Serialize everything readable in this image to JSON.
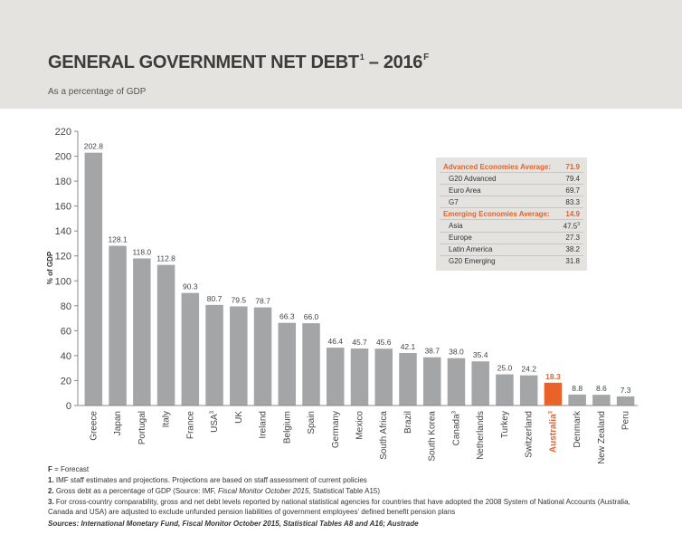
{
  "header": {
    "title": "GENERAL GOVERNMENT NET DEBT",
    "title_sup1": "1",
    "title_rest": " – 2016",
    "title_sup2": "F",
    "subtitle": "As a percentage of GDP"
  },
  "colors": {
    "bar": "#a4a5a7",
    "highlight": "#e8622a",
    "header_bg": "#e4e3e0"
  },
  "chart_data": {
    "type": "bar",
    "ylabel": "% of GDP",
    "ylim": [
      0,
      220
    ],
    "yticks": [
      0,
      20,
      40,
      60,
      80,
      100,
      120,
      140,
      160,
      180,
      200,
      220
    ],
    "categories": [
      "Greece",
      "Japan",
      "Portugal",
      "Italy",
      "France",
      "USA",
      "UK",
      "Ireland",
      "Belgium",
      "Spain",
      "Germany",
      "Mexico",
      "South Africa",
      "Brazil",
      "South Korea",
      "Canada",
      "Netherlands",
      "Turkey",
      "Switzerland",
      "Australia",
      "Denmark",
      "New Zealand",
      "Peru"
    ],
    "category_sups": [
      "",
      "",
      "",
      "",
      "",
      "3",
      "",
      "",
      "",
      "",
      "",
      "",
      "",
      "",
      "",
      "3",
      "",
      "",
      "",
      "3",
      "",
      "",
      ""
    ],
    "values": [
      202.8,
      128.1,
      118.0,
      112.8,
      90.3,
      80.7,
      79.5,
      78.7,
      66.3,
      66.0,
      46.4,
      45.7,
      45.6,
      42.1,
      38.7,
      38.0,
      35.4,
      25.0,
      24.2,
      18.3,
      8.8,
      8.6,
      7.3
    ],
    "value_labels": [
      "202.8",
      "128.1",
      "118.0",
      "112.8",
      "90.3",
      "80.7",
      "79.5",
      "78.7",
      "66.3",
      "66.0",
      "46.4",
      "45.7",
      "45.6",
      "42.1",
      "38.7",
      "38.0",
      "35.4",
      "25.0",
      "24.2",
      "18.3",
      "8.8",
      "8.6",
      "7.3"
    ],
    "highlight": "Australia",
    "legend_table": [
      {
        "label": "Advanced Economies Average:",
        "value": "71.9",
        "header": true
      },
      {
        "label": "G20 Advanced",
        "value": "79.4"
      },
      {
        "label": "Euro Area",
        "value": "69.7"
      },
      {
        "label": "G7",
        "value": "83.3"
      },
      {
        "label": "Emerging Economies Average:",
        "value": "14.9",
        "header": true
      },
      {
        "label": "Asia",
        "value": "47.5",
        "value_sup": "3"
      },
      {
        "label": "Europe",
        "value": "27.3"
      },
      {
        "label": "Latin America",
        "value": "38.2"
      },
      {
        "label": "G20 Emerging",
        "value": "31.8"
      }
    ]
  },
  "footnotes": {
    "f_key": "F",
    "f_text": " = Forecast",
    "n1_num": "1.",
    "n1_text": " IMF staff estimates and projections. Projections are based on staff assessment of current policies",
    "n2_num": "2.",
    "n2_text_a": " Gross debt as a percentage of GDP (Source: IMF, ",
    "n2_text_italic": "Fiscal Monitor October 2015",
    "n2_text_b": ", Statistical Table A15)",
    "n3_num": "3.",
    "n3_text": " For cross-country comparability, gross and net debt levels reported by national statistical agencies for countries that have adopted the 2008 System of National Accounts (Australia, Canada and USA) are adjusted to exclude unfunded pension liabilities of government employees' defined benefit pension plans",
    "sources": "Sources: International Monetary Fund, Fiscal Monitor October 2015, Statistical Tables A8 and A16; Austrade"
  }
}
